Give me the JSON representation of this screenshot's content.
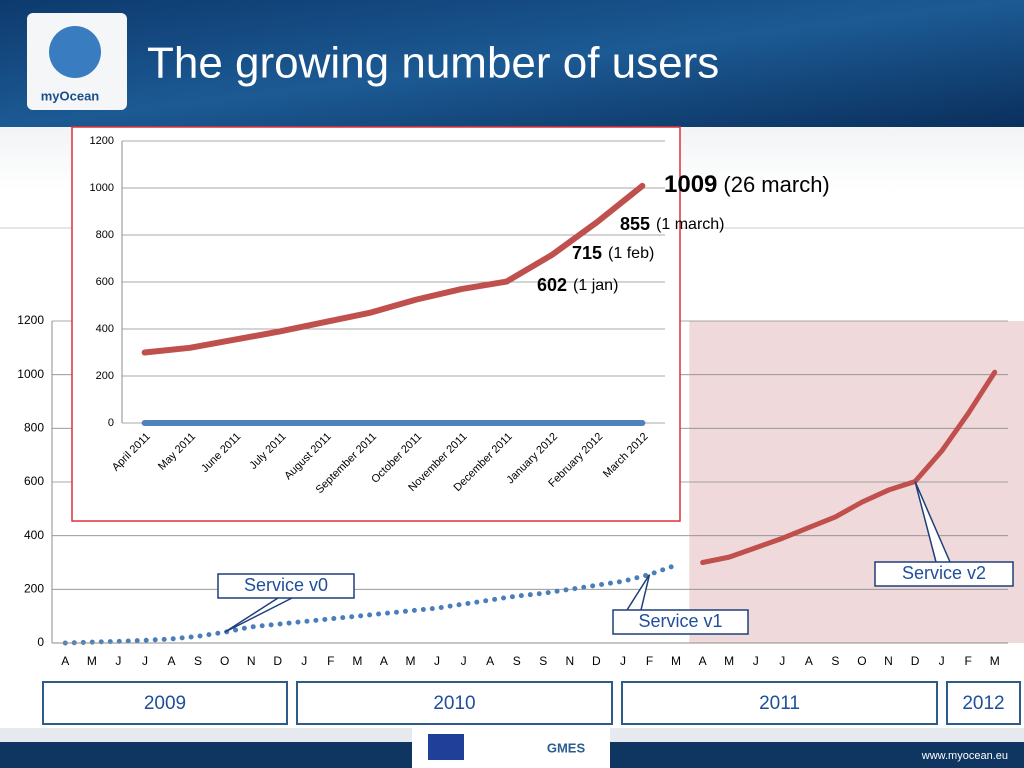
{
  "header": {
    "title": "The growing number of users",
    "logo": "myOcean"
  },
  "footer": {
    "url": "www.myocean.eu",
    "logo": "GMES"
  },
  "chart_data": [
    {
      "type": "line",
      "categories": [
        "A",
        "M",
        "J",
        "J",
        "A",
        "S",
        "O",
        "N",
        "D",
        "J",
        "F",
        "M",
        "A",
        "M",
        "J",
        "J",
        "A",
        "S",
        "S",
        "N",
        "D",
        "J",
        "F",
        "M",
        "A",
        "M",
        "J",
        "J",
        "A",
        "S",
        "O",
        "N",
        "D",
        "J",
        "F",
        "M"
      ],
      "series": [
        {
          "color": "#4a7ebb",
          "style": "dotted",
          "values": [
            0,
            3,
            6,
            10,
            15,
            25,
            40,
            60,
            70,
            80,
            90,
            100,
            110,
            120,
            130,
            145,
            160,
            175,
            185,
            200,
            215,
            230,
            255,
            290,
            null,
            null,
            null,
            null,
            null,
            null,
            null,
            null,
            null,
            null,
            null,
            null
          ]
        },
        {
          "color": "#c0504d",
          "style": "solid",
          "values": [
            null,
            null,
            null,
            null,
            null,
            null,
            null,
            null,
            null,
            null,
            null,
            null,
            null,
            null,
            null,
            null,
            null,
            null,
            null,
            null,
            null,
            null,
            null,
            null,
            300,
            320,
            355,
            390,
            430,
            470,
            525,
            570,
            602,
            715,
            855,
            1009
          ]
        }
      ],
      "ylim": [
        0,
        1200
      ],
      "yticks": [
        0,
        200,
        400,
        600,
        800,
        1000,
        1200
      ],
      "grid": true,
      "annotations": [
        "Service v0",
        "Service v1",
        "Service v2"
      ],
      "years": [
        "2009",
        "2010",
        "2011",
        "2012"
      ]
    },
    {
      "type": "line",
      "categories": [
        "April 2011",
        "May 2011",
        "June 2011",
        "July 2011",
        "August 2011",
        "September 2011",
        "October 2011",
        "November 2011",
        "December 2011",
        "January 2012",
        "February 2012",
        "March 2012"
      ],
      "series": [
        {
          "color": "#c0504d",
          "values": [
            300,
            320,
            355,
            390,
            430,
            470,
            525,
            570,
            602,
            715,
            855,
            1009
          ]
        },
        {
          "color": "#4f81bd",
          "values": [
            0,
            0,
            0,
            0,
            0,
            0,
            0,
            0,
            0,
            0,
            0,
            0
          ]
        }
      ],
      "ylim": [
        0,
        1200
      ],
      "yticks": [
        0,
        200,
        400,
        600,
        800,
        1000,
        1200
      ],
      "grid": true,
      "annotations": [
        {
          "value": 1009,
          "text": "(26 march)"
        },
        {
          "value": 855,
          "text": "(1 march)"
        },
        {
          "value": 715,
          "text": "(1 feb)"
        },
        {
          "value": 602,
          "text": "(1 jan)"
        }
      ]
    }
  ]
}
